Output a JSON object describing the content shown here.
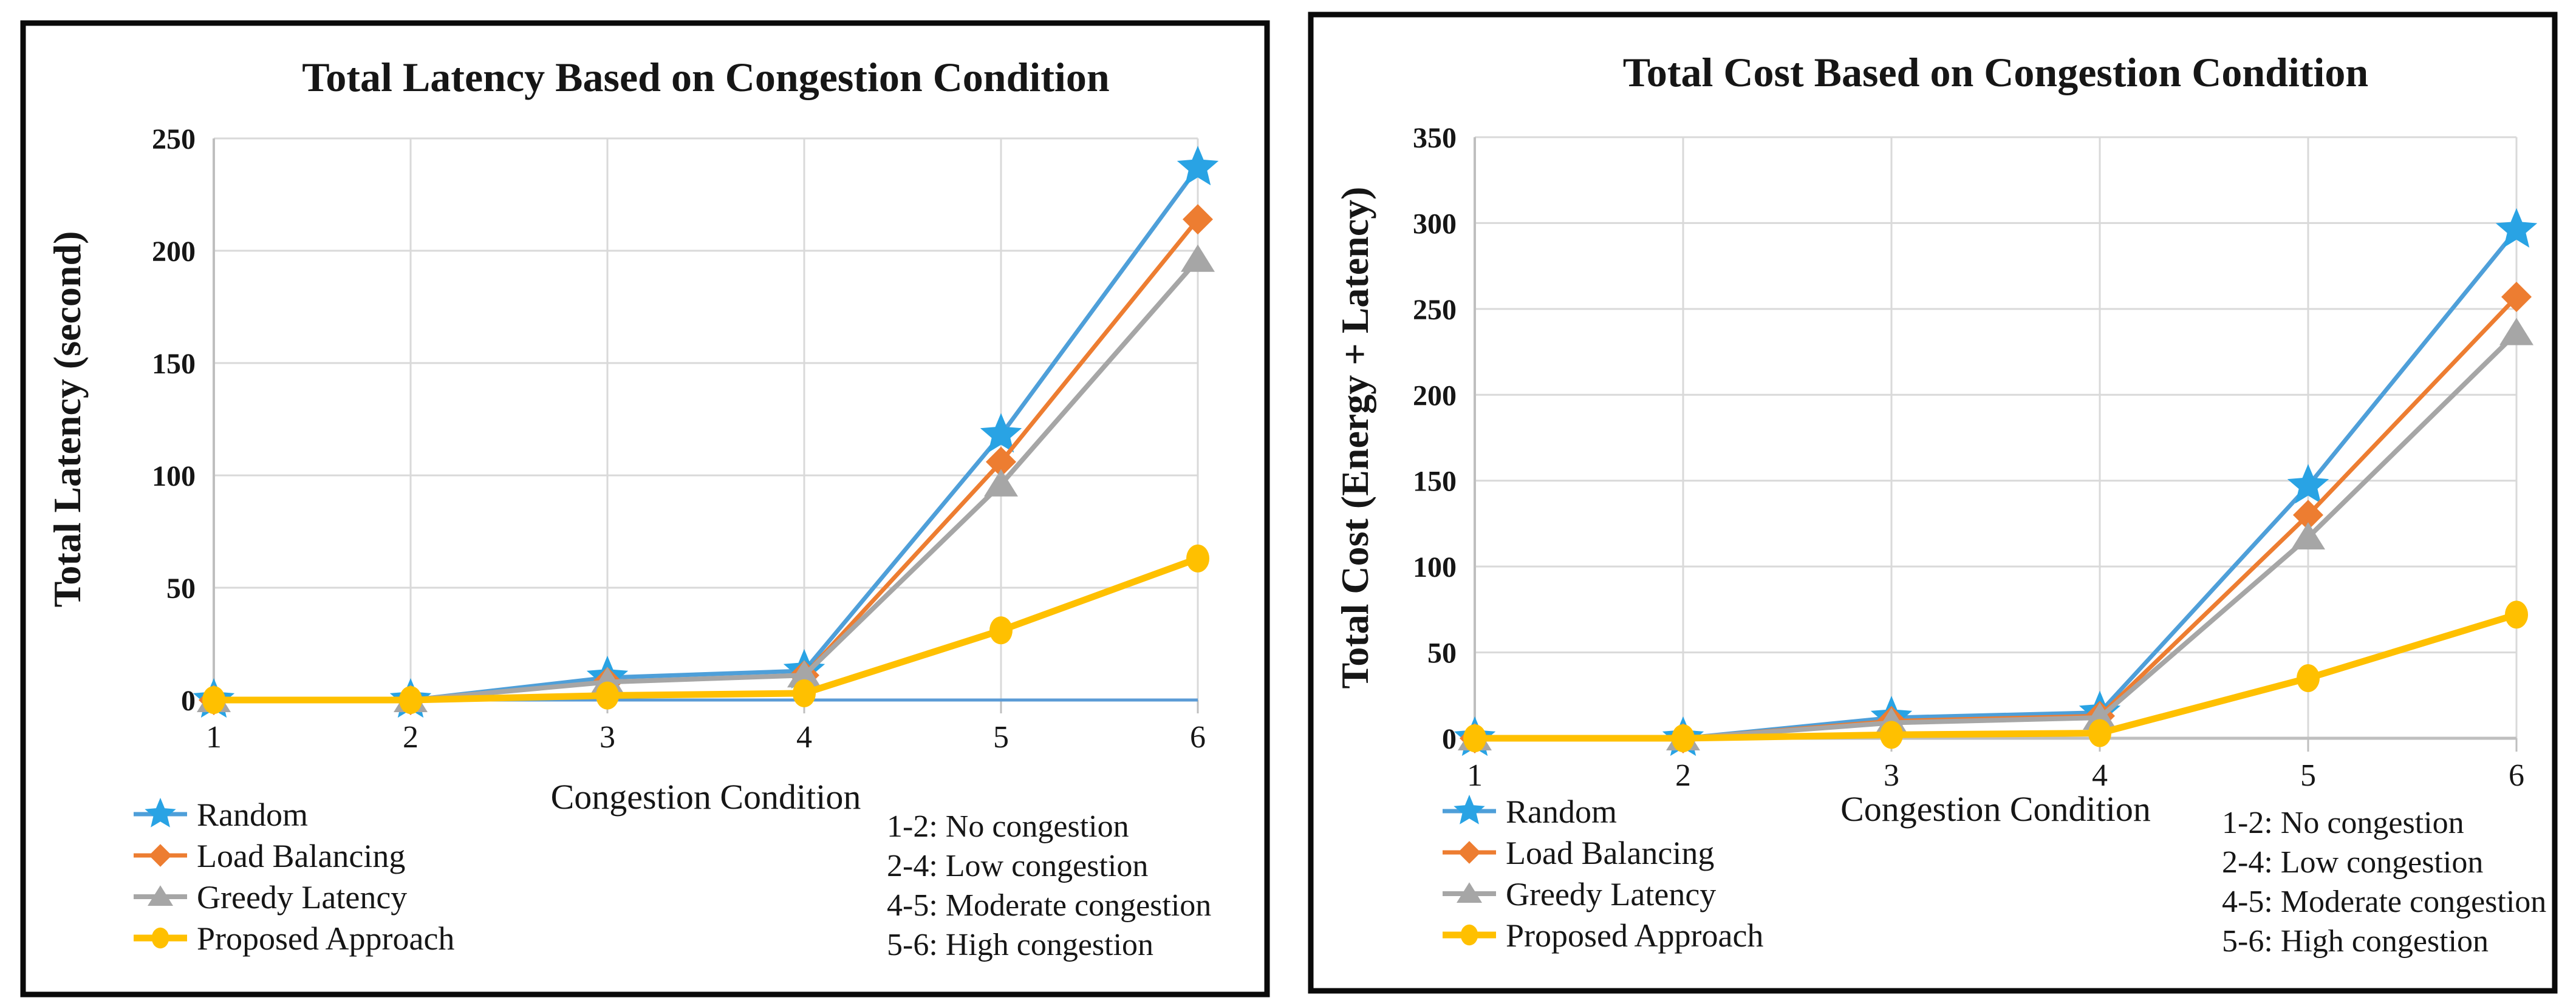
{
  "figure": {
    "background": "#FFFFFF",
    "panel_border_color": "#0A0A0A",
    "grid_color": "#D9D9D9",
    "axis_color": "#BFBFBF",
    "text_color": "#161616"
  },
  "chart_data": [
    {
      "type": "line",
      "title": "Total Latency Based on Congestion Condition",
      "xlabel": "Congestion Condition",
      "ylabel": "Total Latency (second)",
      "categories": [
        "1",
        "2",
        "3",
        "4",
        "5",
        "6"
      ],
      "y_ticks": [
        0,
        50,
        100,
        150,
        200,
        250
      ],
      "ylim": [
        0,
        250
      ],
      "grid": true,
      "legend_position": "bottom-left",
      "axis_line_color": "#5B9BD5",
      "series": [
        {
          "name": "Random",
          "marker": "star",
          "line_color": "#4E9FD9",
          "marker_color": "#29A3E4",
          "values": [
            0,
            0,
            10,
            13,
            118,
            237
          ]
        },
        {
          "name": "Load Balancing",
          "marker": "diamond",
          "line_color": "#ED7D31",
          "marker_color": "#ED7D31",
          "values": [
            0,
            0,
            8,
            11,
            106,
            214
          ]
        },
        {
          "name": "Greedy Latency",
          "marker": "triangle",
          "line_color": "#A6A6A6",
          "marker_color": "#A6A6A6",
          "values": [
            0,
            0,
            8,
            11,
            96,
            196
          ]
        },
        {
          "name": "Proposed Approach",
          "marker": "circle",
          "line_color": "#FFC000",
          "marker_color": "#FFC000",
          "values": [
            0,
            0,
            2,
            3,
            31,
            63
          ]
        }
      ],
      "annotations": [
        "1-2: No congestion",
        "2-4: Low congestion",
        "4-5: Moderate congestion",
        "5-6: High congestion"
      ]
    },
    {
      "type": "line",
      "title": "Total Cost Based on Congestion Condition",
      "xlabel": "Congestion Condition",
      "ylabel": "Total Cost (Energy + Latency)",
      "categories": [
        "1",
        "2",
        "3",
        "4",
        "5",
        "6"
      ],
      "y_ticks": [
        0,
        50,
        100,
        150,
        200,
        250,
        300,
        350
      ],
      "ylim": [
        0,
        350
      ],
      "grid": true,
      "legend_position": "bottom-left",
      "axis_line_color": "#BFBFBF",
      "series": [
        {
          "name": "Random",
          "marker": "star",
          "line_color": "#4E9FD9",
          "marker_color": "#29A3E4",
          "values": [
            0,
            0,
            12,
            15,
            147,
            296
          ]
        },
        {
          "name": "Load Balancing",
          "marker": "diamond",
          "line_color": "#ED7D31",
          "marker_color": "#ED7D31",
          "values": [
            0,
            0,
            10,
            13,
            130,
            257
          ]
        },
        {
          "name": "Greedy Latency",
          "marker": "triangle",
          "line_color": "#A6A6A6",
          "marker_color": "#A6A6A6",
          "values": [
            0,
            0,
            9,
            12,
            117,
            236
          ]
        },
        {
          "name": "Proposed Approach",
          "marker": "circle",
          "line_color": "#FFC000",
          "marker_color": "#FFC000",
          "values": [
            0,
            0,
            2,
            3,
            35,
            72
          ]
        }
      ],
      "annotations": [
        "1-2: No congestion",
        "2-4: Low congestion",
        "4-5: Moderate congestion",
        "5-6: High congestion"
      ]
    }
  ]
}
